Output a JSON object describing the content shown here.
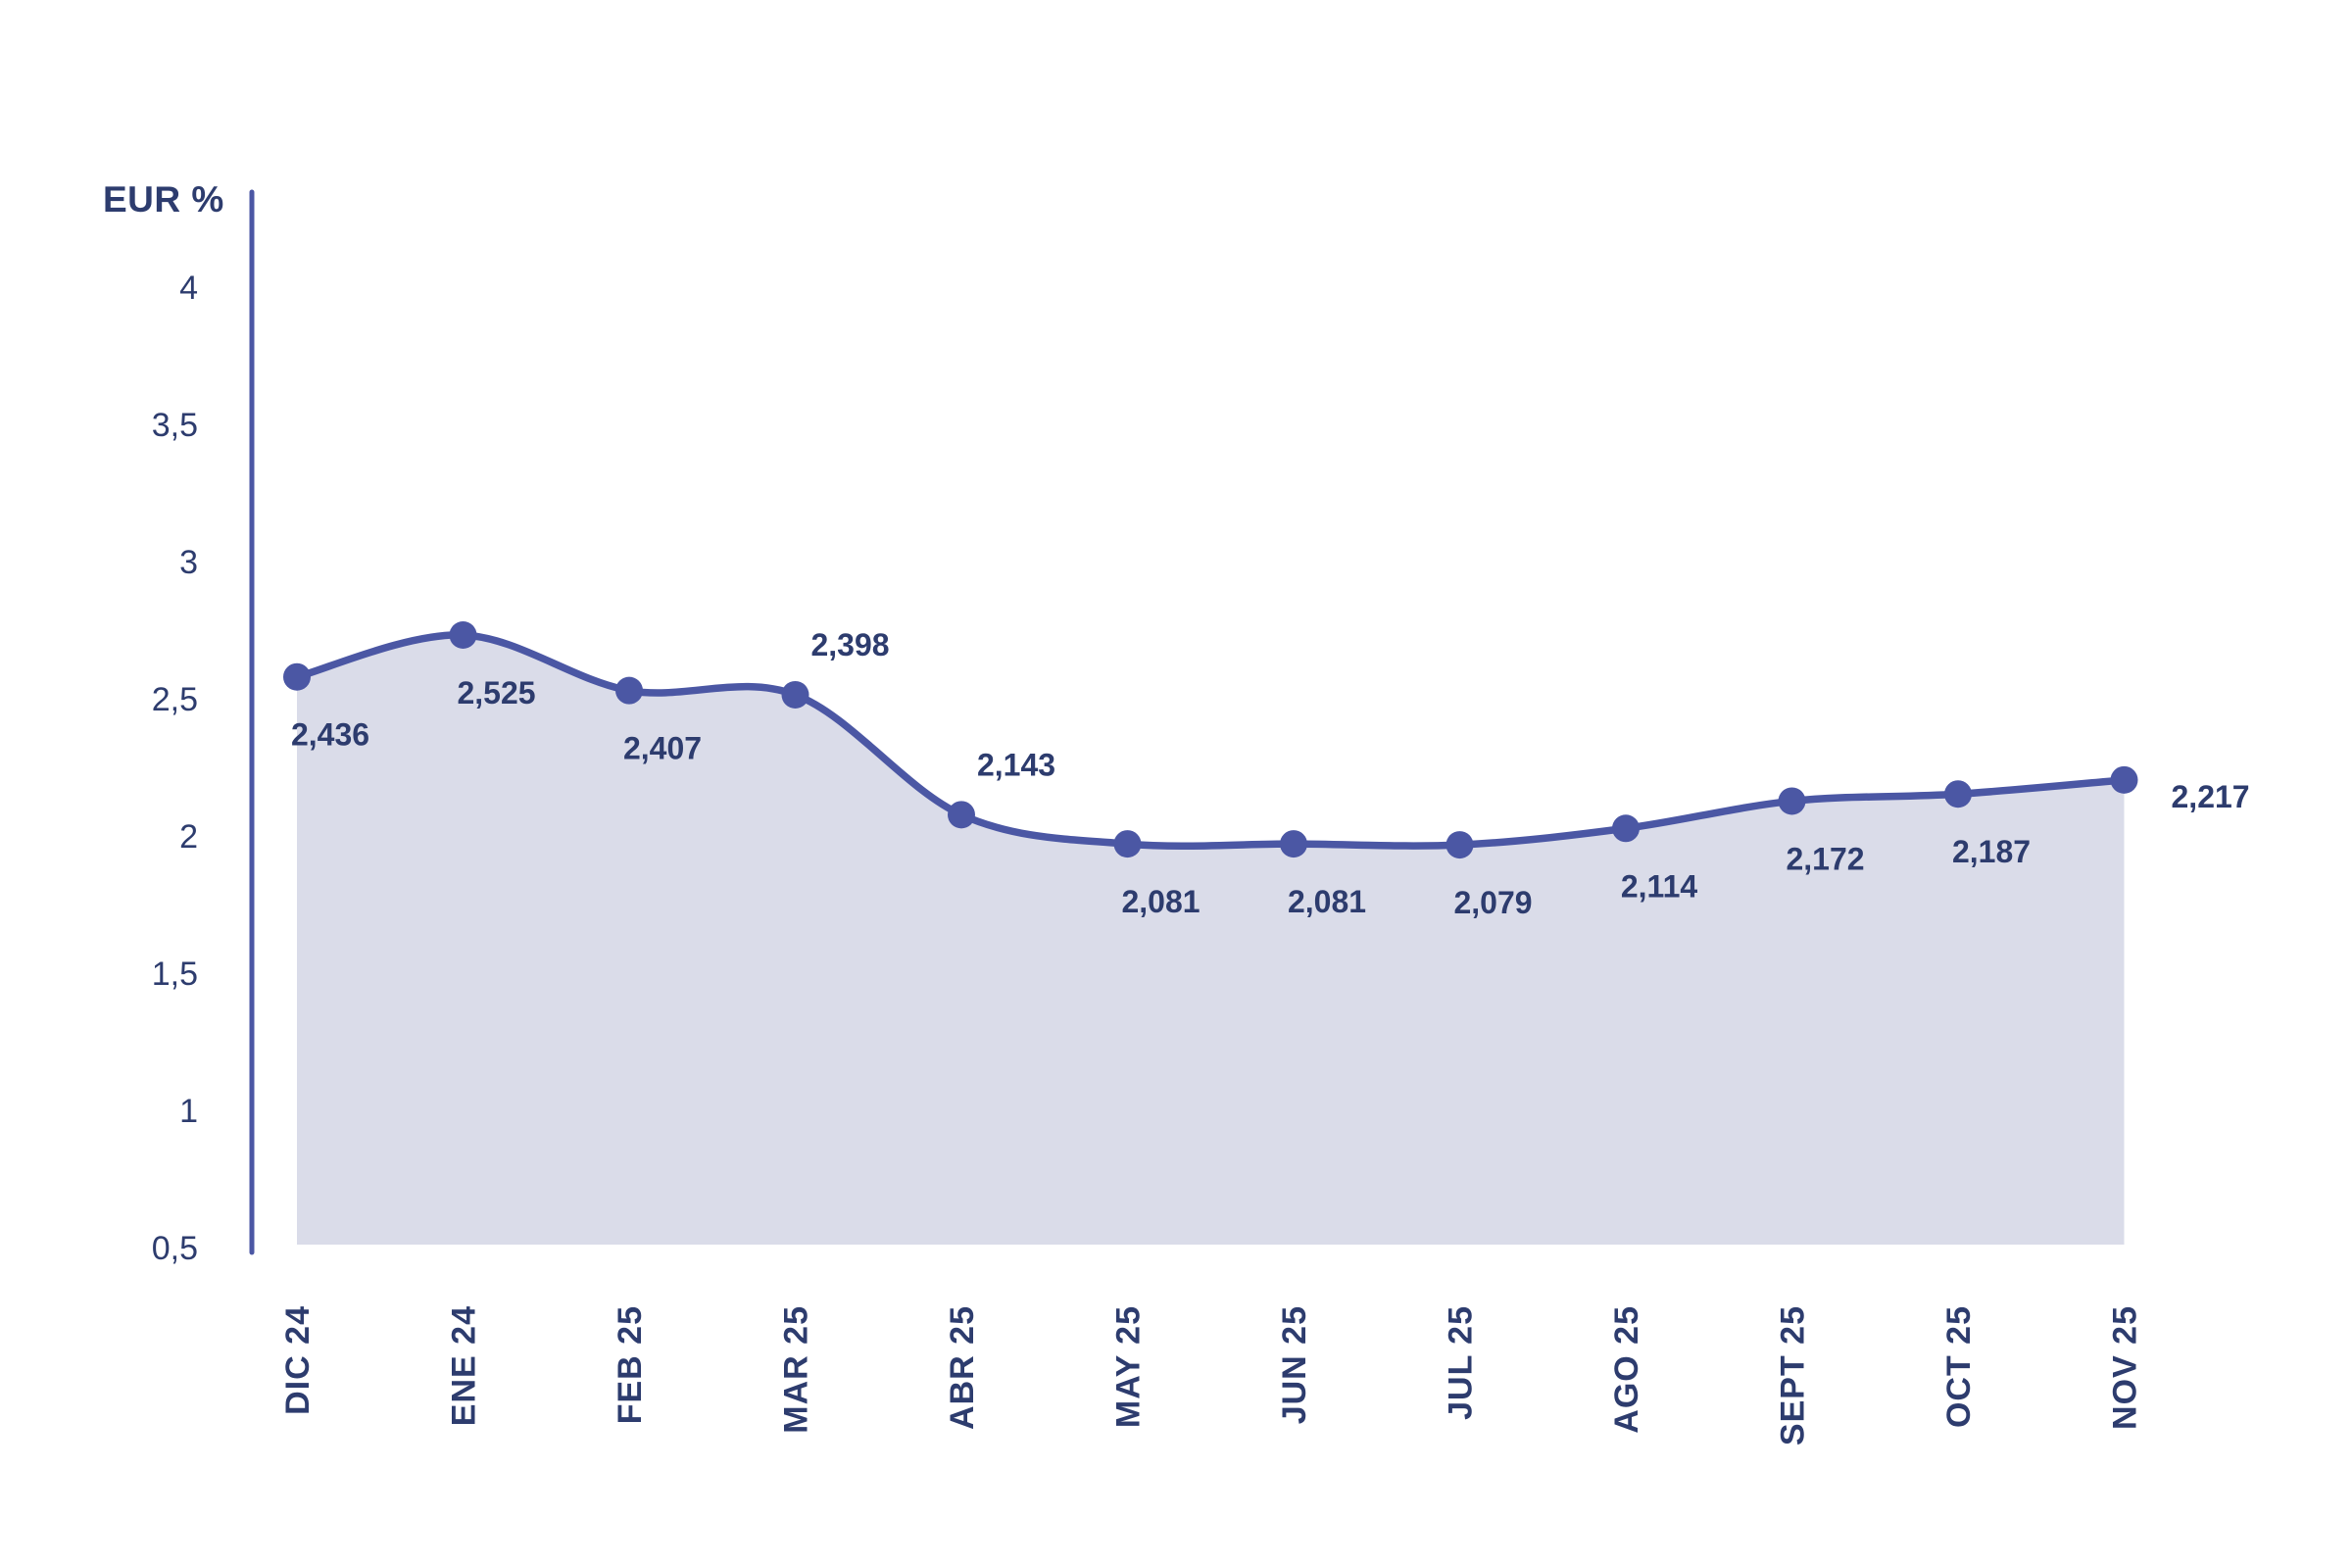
{
  "page": {
    "background_color": "#ffffff"
  },
  "chart_data": {
    "type": "area",
    "title": "",
    "y_axis_label": "EUR %",
    "categories": [
      "DIC 24",
      "ENE 24",
      "FEB 25",
      "MAR 25",
      "ABR 25",
      "MAY 25",
      "JUN 25",
      "JUL 25",
      "AGO 25",
      "SEPT 25",
      "OCT 25",
      "NOV 25"
    ],
    "series": [
      {
        "name": "EUR %",
        "values": [
          2.436,
          2.525,
          2.407,
          2.398,
          2.143,
          2.081,
          2.081,
          2.079,
          2.114,
          2.172,
          2.187,
          2.217
        ]
      }
    ],
    "point_labels": [
      "2,436",
      "2,525",
      "2,407",
      "2,398",
      "2,143",
      "2,081",
      "2,081",
      "2,079",
      "2,114",
      "2,172",
      "2,187",
      "2,217"
    ],
    "point_label_positions": [
      "below",
      "below",
      "below",
      "above",
      "above",
      "below",
      "below",
      "below",
      "below",
      "below",
      "below",
      "right"
    ],
    "y_ticks": [
      {
        "value": 4,
        "label": "4"
      },
      {
        "value": 3.5,
        "label": "3,5"
      },
      {
        "value": 3,
        "label": "3"
      },
      {
        "value": 2.5,
        "label": "2,5"
      },
      {
        "value": 2,
        "label": "2"
      },
      {
        "value": 1.5,
        "label": "1,5"
      },
      {
        "value": 1,
        "label": "1"
      },
      {
        "value": 0.5,
        "label": "0,5"
      }
    ],
    "ylim": [
      0.5,
      4
    ],
    "grid": false,
    "legend": false,
    "smooth_line": true,
    "markers": true,
    "colors": {
      "line": "#4B57A4",
      "marker": "#4B57A4",
      "fill": "#DADCE9",
      "axis": "#4B57A4",
      "text": "#2D3C6E"
    }
  }
}
